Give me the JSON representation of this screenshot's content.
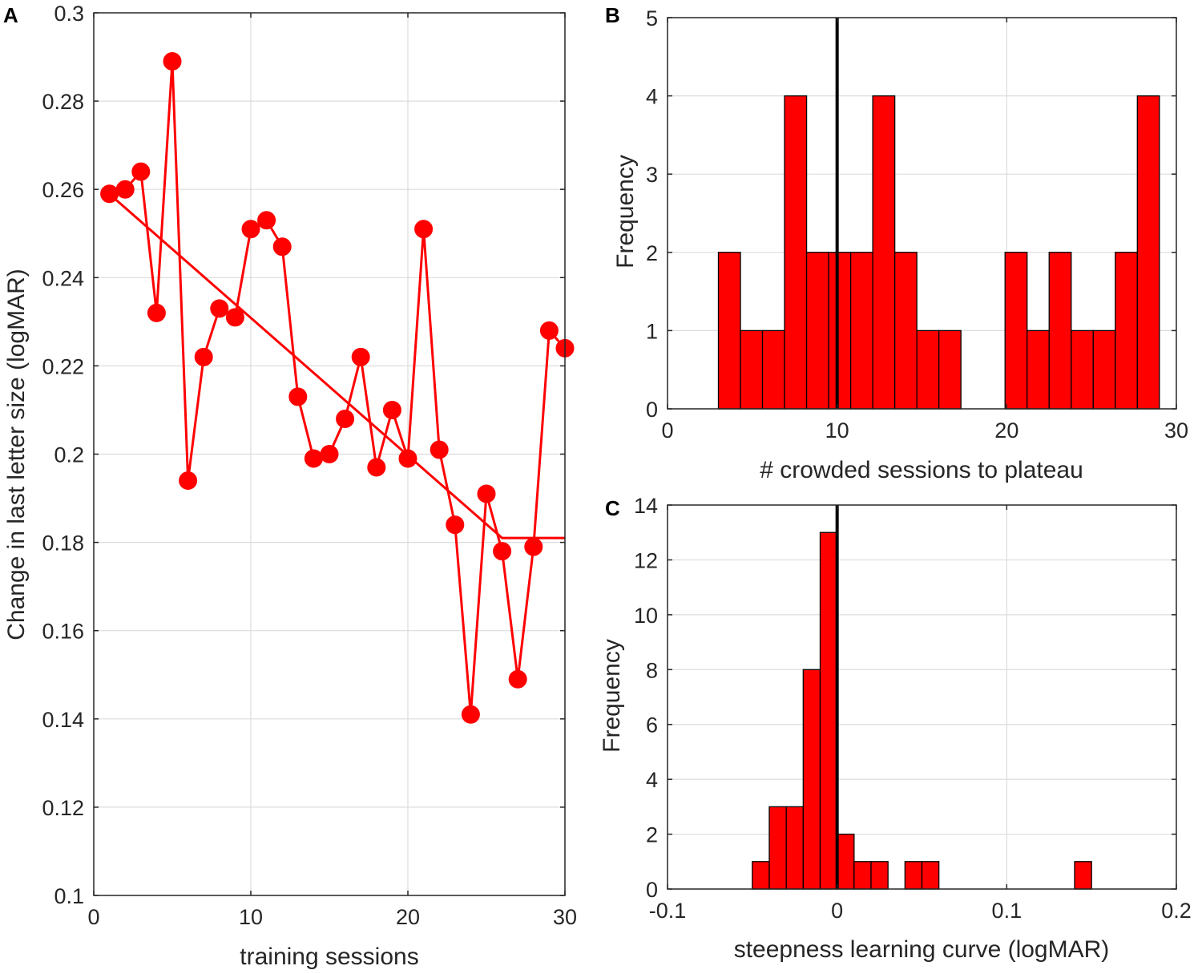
{
  "chart_data": [
    {
      "panel": "A",
      "type": "line",
      "title": "",
      "xlabel": "training sessions",
      "ylabel": "Change in last letter size (logMAR)",
      "xlim": [
        0,
        30
      ],
      "ylim": [
        0.1,
        0.3
      ],
      "grid": true,
      "xticks": [
        0,
        10,
        20,
        30
      ],
      "xtick_labels": [
        "0",
        "10",
        "20",
        "30"
      ],
      "yticks": [
        0.1,
        0.12,
        0.14,
        0.16,
        0.18,
        0.2,
        0.22,
        0.24,
        0.26,
        0.28,
        0.3
      ],
      "ytick_labels": [
        "0.1",
        "0.12",
        "0.14",
        "0.16",
        "0.18",
        "0.2",
        "0.22",
        "0.24",
        "0.26",
        "0.28",
        "0.3"
      ],
      "color": "#ff0000",
      "series": [
        {
          "name": "sessions",
          "style": "line-marker",
          "x": [
            1,
            2,
            3,
            4,
            5,
            6,
            7,
            8,
            9,
            10,
            11,
            12,
            13,
            14,
            15,
            16,
            17,
            18,
            19,
            20,
            21,
            22,
            23,
            24,
            25,
            26,
            27,
            28,
            29,
            30
          ],
          "y": [
            0.259,
            0.26,
            0.264,
            0.232,
            0.289,
            0.194,
            0.222,
            0.233,
            0.231,
            0.251,
            0.253,
            0.247,
            0.213,
            0.199,
            0.2,
            0.208,
            0.222,
            0.197,
            0.21,
            0.199,
            0.251,
            0.201,
            0.184,
            0.141,
            0.191,
            0.178,
            0.149,
            0.179,
            0.228,
            0.224
          ]
        },
        {
          "name": "fit",
          "style": "line",
          "x": [
            1.3,
            26,
            30
          ],
          "y": [
            0.258,
            0.181,
            0.181
          ]
        }
      ]
    },
    {
      "panel": "B",
      "type": "bar",
      "title": "",
      "xlabel": "# crowded sessions to plateau",
      "ylabel": "Frequency",
      "xlim": [
        0,
        30
      ],
      "ylim": [
        0,
        5
      ],
      "grid": true,
      "xticks": [
        0,
        10,
        20,
        30
      ],
      "xtick_labels": [
        "0",
        "10",
        "20",
        "30"
      ],
      "yticks": [
        0,
        1,
        2,
        3,
        4,
        5
      ],
      "ytick_labels": [
        "0",
        "1",
        "2",
        "3",
        "4",
        "5"
      ],
      "bin_width": 1.3,
      "bin_edges": [
        3,
        4.3,
        5.6,
        6.9,
        8.2,
        9.5,
        10.8,
        12.1,
        13.4,
        14.7,
        16,
        17.3,
        18.6,
        19.9,
        21.2,
        22.5,
        23.8,
        25.1,
        26.4,
        27.7,
        29
      ],
      "values": [
        2,
        1,
        1,
        4,
        2,
        2,
        2,
        4,
        2,
        1,
        1,
        0,
        0,
        2,
        1,
        2,
        1,
        1,
        2,
        4
      ],
      "reference_line_x": 10,
      "color": "#ff0000"
    },
    {
      "panel": "C",
      "type": "bar",
      "title": "",
      "xlabel": "steepness learning curve (logMAR)",
      "ylabel": "Frequency",
      "xlim": [
        -0.1,
        0.2
      ],
      "ylim": [
        0,
        14
      ],
      "grid": true,
      "xticks": [
        -0.1,
        0,
        0.1,
        0.2
      ],
      "xtick_labels": [
        "-0.1",
        "0",
        "0.1",
        "0.2"
      ],
      "yticks": [
        0,
        2,
        4,
        6,
        8,
        10,
        12,
        14
      ],
      "ytick_labels": [
        "0",
        "2",
        "4",
        "6",
        "8",
        "10",
        "12",
        "14"
      ],
      "bin_width": 0.01,
      "bin_edges": [
        -0.05,
        -0.04,
        -0.03,
        -0.02,
        -0.01,
        0,
        0.01,
        0.02,
        0.03,
        0.04,
        0.05,
        0.06,
        0.07,
        0.08,
        0.09,
        0.1,
        0.11,
        0.12,
        0.13,
        0.14,
        0.15
      ],
      "values": [
        1,
        3,
        3,
        8,
        13,
        2,
        1,
        1,
        0,
        1,
        1,
        0,
        0,
        0,
        0,
        0,
        0,
        0,
        0,
        1
      ],
      "reference_line_x": 0,
      "color": "#ff0000"
    }
  ]
}
